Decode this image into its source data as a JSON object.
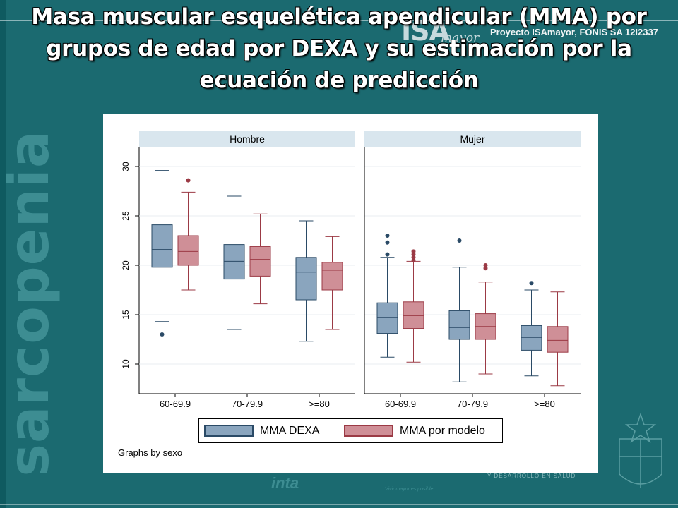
{
  "slide": {
    "title": "Masa muscular esquelética apendicular (MMA) por grupos de edad por DEXA y su estimación por la ecuación de predicción",
    "watermark": "sarcopenia",
    "logo_text_big": "ISA",
    "logo_text_small": "mayor",
    "project_text": "Proyecto ISAmayor, FONIS SA 12I2337",
    "footer_logo_text": "inta",
    "footer_text": "Y DESARROLLO EN SALUD",
    "footer_text2": "Vivir mayor es posible"
  },
  "colors": {
    "dexa_fill": "#8aa5be",
    "dexa_stroke": "#2a4a66",
    "model_fill": "#cf8f97",
    "model_stroke": "#9b3a45",
    "panel_header": "#d9e6ee"
  },
  "chart_data": {
    "type": "box",
    "ylim": [
      7,
      32
    ],
    "yticks": [
      10,
      15,
      20,
      25,
      30
    ],
    "categories": [
      "60-69.9",
      "70-79.9",
      ">=80"
    ],
    "legend": [
      "MMA DEXA",
      "MMA por modelo"
    ],
    "legend_position": "bottom",
    "note": "Graphs by sexo",
    "panels": [
      {
        "name": "Hombre",
        "groups": [
          {
            "category": "60-69.9",
            "dexa": {
              "min": 14.3,
              "q1": 19.8,
              "median": 21.6,
              "q3": 24.1,
              "max": 29.6,
              "outliers": [
                13.0
              ]
            },
            "model": {
              "min": 17.5,
              "q1": 20.0,
              "median": 21.4,
              "q3": 23.0,
              "max": 27.4,
              "outliers": [
                28.6
              ]
            }
          },
          {
            "category": "70-79.9",
            "dexa": {
              "min": 13.5,
              "q1": 18.6,
              "median": 20.4,
              "q3": 22.1,
              "max": 27.0,
              "outliers": []
            },
            "model": {
              "min": 16.1,
              "q1": 18.9,
              "median": 20.6,
              "q3": 21.9,
              "max": 25.2,
              "outliers": []
            }
          },
          {
            "category": ">=80",
            "dexa": {
              "min": 12.3,
              "q1": 16.5,
              "median": 19.3,
              "q3": 20.8,
              "max": 24.5,
              "outliers": []
            },
            "model": {
              "min": 13.5,
              "q1": 17.5,
              "median": 19.5,
              "q3": 20.3,
              "max": 22.9,
              "outliers": []
            }
          }
        ]
      },
      {
        "name": "Mujer",
        "groups": [
          {
            "category": "60-69.9",
            "dexa": {
              "min": 10.7,
              "q1": 13.1,
              "median": 14.7,
              "q3": 16.2,
              "max": 20.8,
              "outliers": [
                21.1,
                22.3,
                23.0
              ]
            },
            "model": {
              "min": 10.2,
              "q1": 13.6,
              "median": 14.9,
              "q3": 16.3,
              "max": 20.4,
              "outliers": [
                20.5,
                20.8,
                21.1,
                21.4
              ]
            }
          },
          {
            "category": "70-79.9",
            "dexa": {
              "min": 8.2,
              "q1": 12.5,
              "median": 13.7,
              "q3": 15.4,
              "max": 19.8,
              "outliers": [
                22.5
              ]
            },
            "model": {
              "min": 9.0,
              "q1": 12.5,
              "median": 13.8,
              "q3": 15.1,
              "max": 18.3,
              "outliers": [
                19.7,
                20.0
              ]
            }
          },
          {
            "category": ">=80",
            "dexa": {
              "min": 8.8,
              "q1": 11.4,
              "median": 12.7,
              "q3": 13.9,
              "max": 17.5,
              "outliers": [
                18.2
              ]
            },
            "model": {
              "min": 7.8,
              "q1": 11.2,
              "median": 12.4,
              "q3": 13.8,
              "max": 17.3,
              "outliers": []
            }
          }
        ]
      }
    ]
  }
}
